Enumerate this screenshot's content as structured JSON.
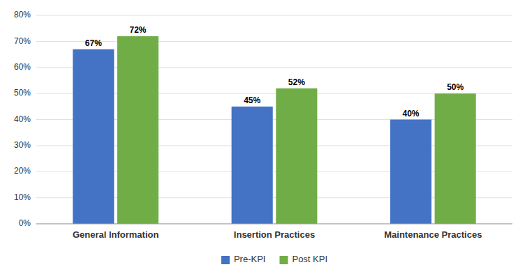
{
  "chart_data": {
    "type": "bar",
    "categories": [
      "General Information",
      "Insertion Practices",
      "Maintenance Practices"
    ],
    "series": [
      {
        "name": "Pre-KPI",
        "color": "#4472C4",
        "values": [
          67,
          45,
          40
        ],
        "value_labels": [
          "67%",
          "45%",
          "40%"
        ]
      },
      {
        "name": "Post KPI",
        "color": "#70AD47",
        "values": [
          72,
          52,
          50
        ],
        "value_labels": [
          "72%",
          "52%",
          "50%"
        ]
      }
    ],
    "ylim": [
      0,
      80
    ],
    "yticks": [
      {
        "value": 0,
        "label": "0%"
      },
      {
        "value": 10,
        "label": "10%"
      },
      {
        "value": 20,
        "label": "20%"
      },
      {
        "value": 30,
        "label": "30%"
      },
      {
        "value": 40,
        "label": "40%"
      },
      {
        "value": 50,
        "label": "50%"
      },
      {
        "value": 60,
        "label": "60%"
      },
      {
        "value": 70,
        "label": "70%"
      },
      {
        "value": 80,
        "label": "80%"
      }
    ],
    "grid": true,
    "data_labels": true,
    "legend": "bottom"
  }
}
